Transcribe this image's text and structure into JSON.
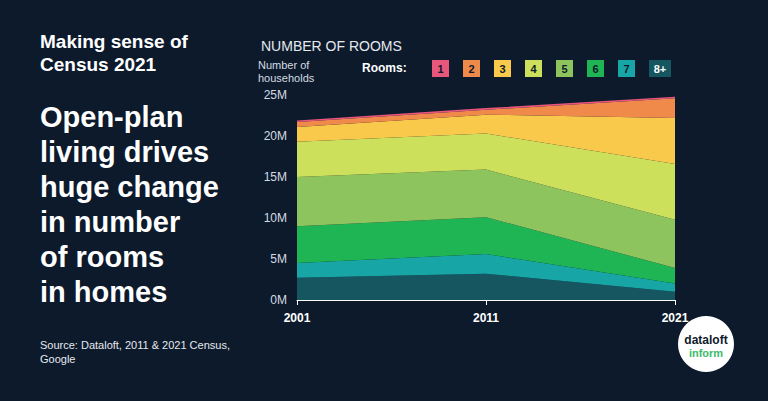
{
  "chart_data": {
    "type": "area",
    "title": "NUMBER OF ROOMS",
    "y_label": "Number of\nhouseholds",
    "legend_title": "Rooms:",
    "categories": [
      "2001",
      "2011",
      "2021"
    ],
    "series": [
      {
        "name": "1",
        "color": "#e9567b",
        "values": [
          200000,
          200000,
          200000
        ]
      },
      {
        "name": "2",
        "color": "#f08a4b",
        "values": [
          600000,
          600000,
          2400000
        ]
      },
      {
        "name": "3",
        "color": "#f8c94a",
        "values": [
          1800000,
          2300000,
          5600000
        ]
      },
      {
        "name": "4",
        "color": "#cde05c",
        "values": [
          4300000,
          4400000,
          6800000
        ]
      },
      {
        "name": "5",
        "color": "#8dc45d",
        "values": [
          6000000,
          5800000,
          5900000
        ]
      },
      {
        "name": "6",
        "color": "#1fb454",
        "values": [
          4500000,
          4500000,
          1900000
        ]
      },
      {
        "name": "7",
        "color": "#17a5a6",
        "values": [
          1800000,
          2400000,
          1000000
        ]
      },
      {
        "name": "8+",
        "color": "#155660",
        "values": [
          2700000,
          3200000,
          1000000
        ]
      }
    ],
    "ylim": [
      0,
      25000000
    ],
    "yticks": [
      {
        "value": 0,
        "label": "0M"
      },
      {
        "value": 5000000,
        "label": "5M"
      },
      {
        "value": 10000000,
        "label": "10M"
      },
      {
        "value": 15000000,
        "label": "15M"
      },
      {
        "value": 20000000,
        "label": "20M"
      },
      {
        "value": 25000000,
        "label": "25M"
      }
    ],
    "stacked": true,
    "grid": false
  },
  "page": {
    "kicker": "Making sense of\nCensus 2021",
    "headline": "Open-plan\nliving drives\nhuge change\nin number\nof rooms\nin homes",
    "source": "Source: Dataloft, 2011 & 2021 Census,\nGoogle",
    "logo": [
      "dataloft",
      "inform"
    ]
  }
}
